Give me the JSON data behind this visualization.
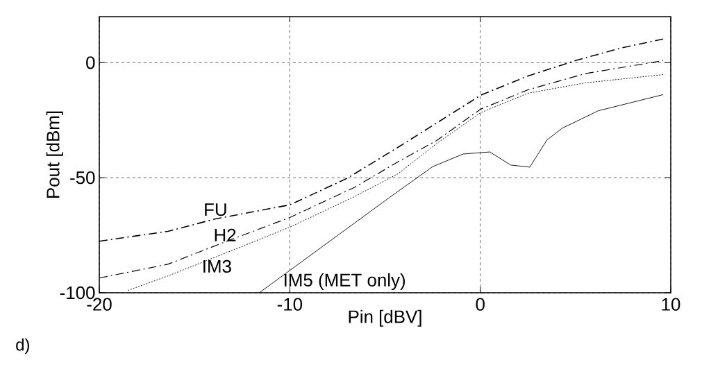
{
  "chart_data": {
    "type": "line",
    "xlabel": "Pin [dBV]",
    "ylabel": "Pout [dBm]",
    "xlim": [
      -20,
      10
    ],
    "ylim": [
      -100,
      20
    ],
    "xticks": [
      -20,
      -10,
      0,
      10
    ],
    "yticks": [
      -100,
      -50,
      0
    ],
    "grid": true,
    "marker": "none",
    "series": [
      {
        "name": "FU",
        "color": "#000000",
        "line_style": "dashed",
        "x": [
          -20,
          -16.4,
          -13.9,
          -10,
          -7.0,
          -4.3,
          -0.4,
          0,
          2.5,
          5.0,
          7.4,
          9.6
        ],
        "values": [
          -77.6,
          -73.3,
          -67.9,
          -61.8,
          -50.3,
          -36.7,
          -16.4,
          -14.2,
          -5.8,
          0.9,
          6.4,
          10.3
        ]
      },
      {
        "name": "H2",
        "color": "#000000",
        "line_style": "dashed",
        "x": [
          -20,
          -16.4,
          -13.4,
          -10,
          -6.6,
          -4.3,
          -2.3,
          0,
          2.5,
          5.5,
          9.6
        ],
        "values": [
          -93.6,
          -87.6,
          -77.9,
          -67.3,
          -54.2,
          -43,
          -33.9,
          -20.3,
          -11.8,
          -4.8,
          0.9
        ]
      },
      {
        "name": "IM3",
        "color": "#000000",
        "line_style": "dotted",
        "x": [
          -18.5,
          -16.4,
          -13.9,
          -10,
          -6.6,
          -4.3,
          -2.3,
          0,
          2.5,
          5.5,
          9.6
        ],
        "values": [
          -99,
          -92.7,
          -84.5,
          -71.5,
          -58.2,
          -48.2,
          -35.2,
          -21.8,
          -13.3,
          -8.8,
          -5.2
        ]
      },
      {
        "name": "IM5 (MET only)",
        "color": "#000000",
        "line_style": "solid",
        "x": [
          -11.6,
          -4.8,
          -2.5,
          -0.9,
          0.5,
          1.6,
          2.6,
          3.5,
          4.3,
          6.2,
          9.6
        ],
        "values": [
          -100,
          -58.8,
          -45.2,
          -39.7,
          -38.8,
          -44.5,
          -45.4,
          -33.6,
          -28.5,
          -20.9,
          -13.9
        ]
      }
    ],
    "annotations": [
      "d)"
    ]
  }
}
